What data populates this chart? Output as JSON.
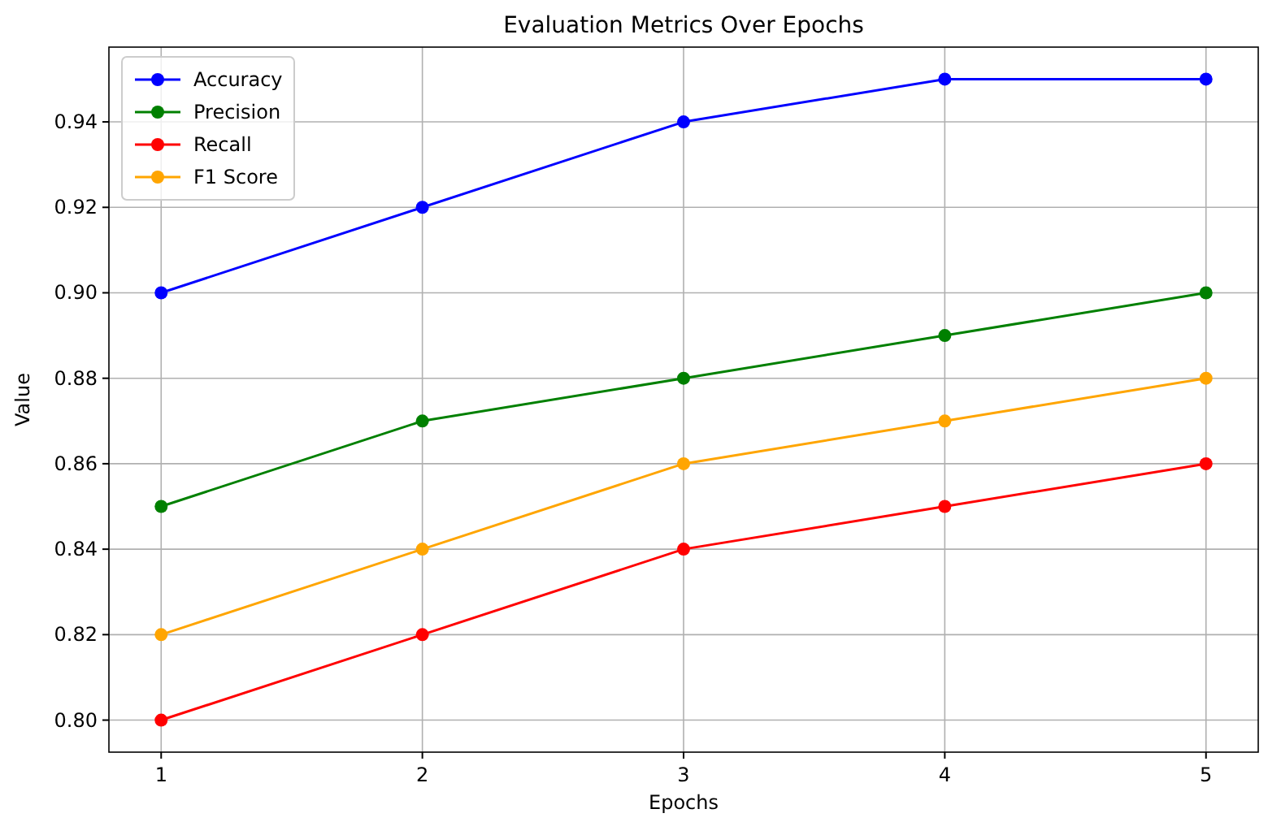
{
  "chart_data": {
    "type": "line",
    "title": "Evaluation Metrics Over Epochs",
    "xlabel": "Epochs",
    "ylabel": "Value",
    "x": [
      1,
      2,
      3,
      4,
      5
    ],
    "series": [
      {
        "name": "Accuracy",
        "color": "#0000ff",
        "values": [
          0.9,
          0.92,
          0.94,
          0.95,
          0.95
        ]
      },
      {
        "name": "Precision",
        "color": "#008000",
        "values": [
          0.85,
          0.87,
          0.88,
          0.89,
          0.9
        ]
      },
      {
        "name": "Recall",
        "color": "#ff0000",
        "values": [
          0.8,
          0.82,
          0.84,
          0.85,
          0.86
        ]
      },
      {
        "name": "F1 Score",
        "color": "#ffa500",
        "values": [
          0.82,
          0.84,
          0.86,
          0.87,
          0.88
        ]
      }
    ],
    "xlim": [
      0.8,
      5.2
    ],
    "xticks": [
      1,
      2,
      3,
      4,
      5
    ],
    "ylim": [
      0.7925,
      0.9575
    ],
    "yticks": [
      {
        "value": 0.8,
        "label": "0.80"
      },
      {
        "value": 0.82,
        "label": "0.82"
      },
      {
        "value": 0.84,
        "label": "0.84"
      },
      {
        "value": 0.86,
        "label": "0.86"
      },
      {
        "value": 0.88,
        "label": "0.88"
      },
      {
        "value": 0.9,
        "label": "0.90"
      },
      {
        "value": 0.92,
        "label": "0.92"
      },
      {
        "value": 0.94,
        "label": "0.94"
      }
    ],
    "grid": true,
    "legend": "top left",
    "marker": "circle",
    "line_style": "solid"
  }
}
